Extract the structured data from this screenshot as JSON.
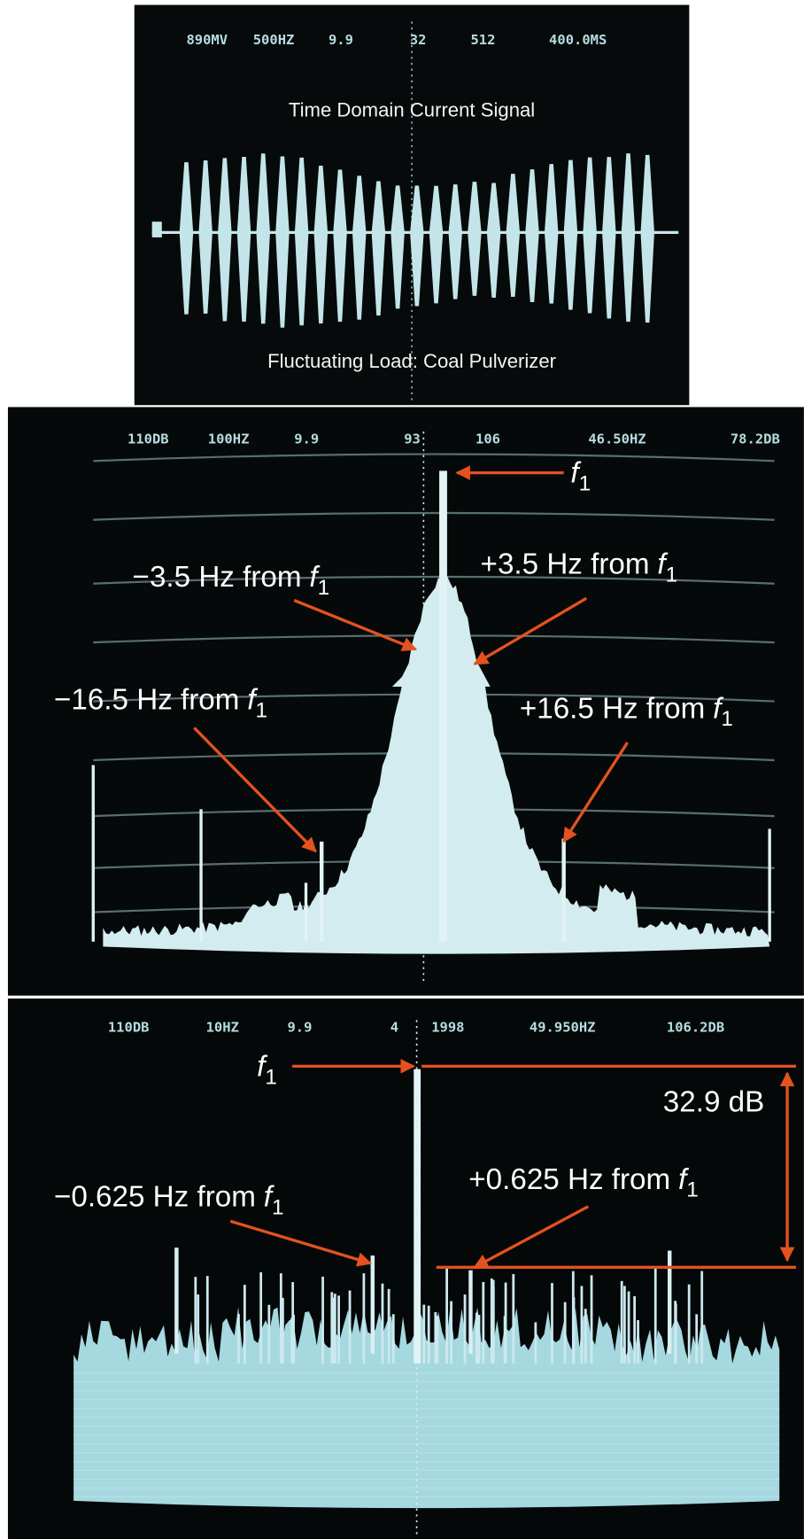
{
  "panels": [
    {
      "header": [
        "890MV",
        "500HZ",
        "9.9",
        "32",
        "512",
        "400.0MS"
      ],
      "title": "Time Domain Current Signal",
      "caption": "Fluctuating Load: Coal Pulverizer"
    },
    {
      "header": [
        "110DB",
        "100HZ",
        "9.9",
        "93",
        "106",
        "46.50HZ",
        "78.2DB"
      ],
      "annotations": [
        {
          "symbol": "f",
          "subscript": "1"
        },
        {
          "text": "−3.5 Hz from",
          "symbol": "f",
          "subscript": "1"
        },
        {
          "text": "+3.5 Hz from",
          "symbol": "f",
          "subscript": "1"
        },
        {
          "text": "−16.5 Hz from",
          "symbol": "f",
          "subscript": "1"
        },
        {
          "text": "+16.5 Hz from",
          "symbol": "f",
          "subscript": "1"
        }
      ]
    },
    {
      "header": [
        "110DB",
        "10HZ",
        "9.9",
        "4",
        "1998",
        "49.950HZ",
        "106.2DB"
      ],
      "annotations": [
        {
          "symbol": "f",
          "subscript": "1"
        },
        {
          "text": "−0.625 Hz from",
          "symbol": "f",
          "subscript": "1"
        },
        {
          "text": "+0.625 Hz from",
          "symbol": "f",
          "subscript": "1"
        }
      ],
      "measure": "32.9 dB"
    }
  ]
}
